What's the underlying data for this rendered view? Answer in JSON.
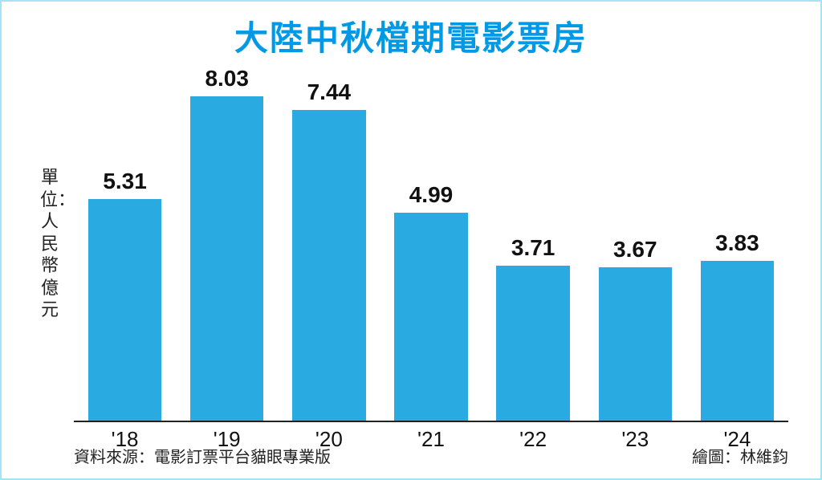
{
  "title": "大陸中秋檔期電影票房",
  "title_color": "#0099e5",
  "title_fontsize": 42,
  "ylabel": "單位：人民幣億元",
  "ylabel_fontsize": 22,
  "chart": {
    "type": "bar",
    "categories": [
      "'18",
      "'19",
      "'20",
      "'21",
      "'22",
      "'23",
      "'24"
    ],
    "values": [
      5.31,
      8.03,
      7.44,
      4.99,
      3.71,
      3.67,
      3.83
    ],
    "bar_color": "#29abe2",
    "ymax": 8.5,
    "value_fontsize": 28,
    "category_fontsize": 26,
    "axis_color": "#222222",
    "background_color": "#ffffff",
    "border_color": "#a8e2f5",
    "bar_width_ratio": 0.72
  },
  "footer": {
    "source_label": "資料來源：電影訂票平台貓眼專業版",
    "credit_label": "繪圖：林維鈞",
    "fontsize": 20
  }
}
